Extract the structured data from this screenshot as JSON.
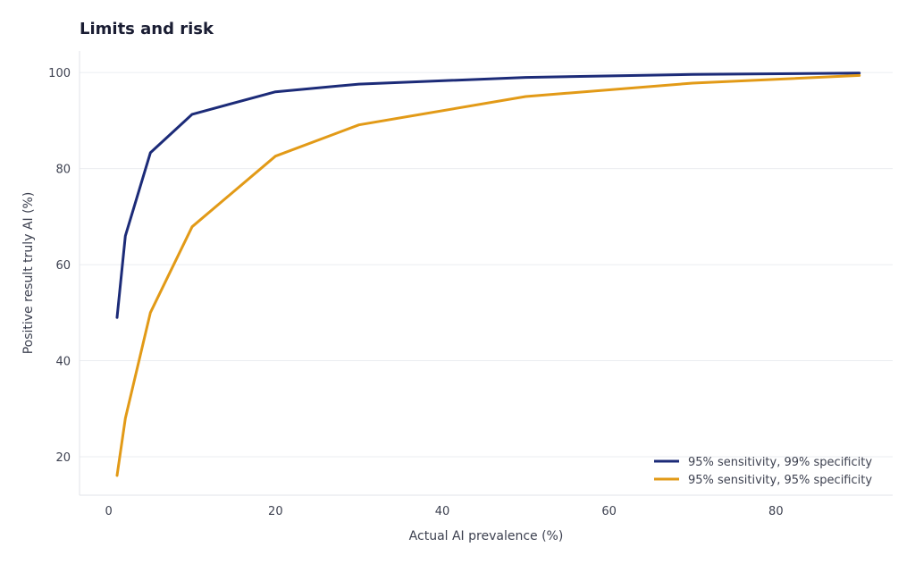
{
  "chart_data": {
    "type": "line",
    "title": "Limits and risk",
    "xlabel": "Actual AI prevalence (%)",
    "ylabel": "Positive result truly AI (%)",
    "xlim": [
      -3.5,
      94
    ],
    "ylim": [
      12,
      104.5
    ],
    "xticks": [
      0,
      20,
      40,
      60,
      80
    ],
    "yticks": [
      20,
      40,
      60,
      80,
      100
    ],
    "grid": "horizontal",
    "legend_position": "bottom-right",
    "x": [
      1,
      2,
      5,
      10,
      20,
      30,
      50,
      70,
      90
    ],
    "series": [
      {
        "name": "95% sensitivity, 99% specificity",
        "color": "#1c2b78",
        "values": [
          49.0,
          66.0,
          83.3,
          91.3,
          96.0,
          97.6,
          99.0,
          99.6,
          99.9
        ]
      },
      {
        "name": "95% sensitivity, 95% specificity",
        "color": "#e29a17",
        "values": [
          16.1,
          28.0,
          50.0,
          67.9,
          82.6,
          89.1,
          95.0,
          97.8,
          99.4
        ]
      }
    ]
  }
}
